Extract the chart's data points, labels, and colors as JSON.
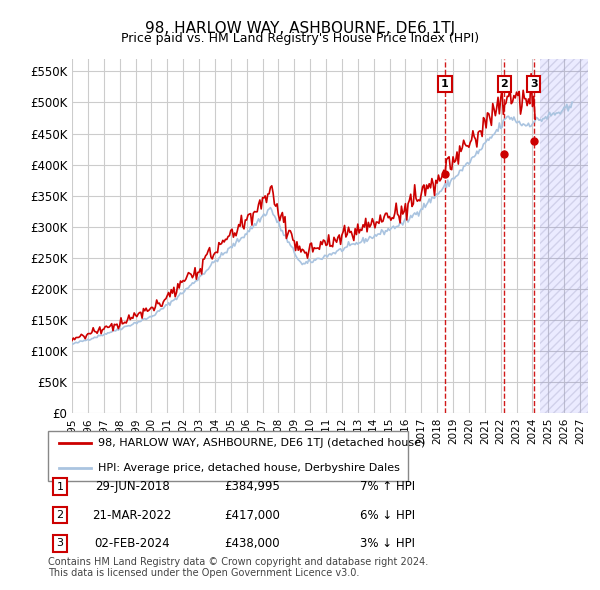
{
  "title": "98, HARLOW WAY, ASHBOURNE, DE6 1TJ",
  "subtitle": "Price paid vs. HM Land Registry's House Price Index (HPI)",
  "ylabel": "",
  "ylim": [
    0,
    570000
  ],
  "yticks": [
    0,
    50000,
    100000,
    150000,
    200000,
    250000,
    300000,
    350000,
    400000,
    450000,
    500000,
    550000
  ],
  "ytick_labels": [
    "£0",
    "£50K",
    "£100K",
    "£150K",
    "£200K",
    "£250K",
    "£300K",
    "£350K",
    "£400K",
    "£450K",
    "£500K",
    "£550K"
  ],
  "hpi_color": "#aac4e0",
  "price_color": "#cc0000",
  "transaction_color": "#cc0000",
  "dashed_line_color": "#cc0000",
  "background_color": "#ffffff",
  "grid_color": "#cccccc",
  "transactions": [
    {
      "date": 2018.49,
      "price": 384995,
      "label": "1"
    },
    {
      "date": 2022.22,
      "price": 417000,
      "label": "2"
    },
    {
      "date": 2024.09,
      "price": 438000,
      "label": "3"
    }
  ],
  "transaction_table": [
    {
      "num": "1",
      "date": "29-JUN-2018",
      "price": "£384,995",
      "hpi": "7% ↑ HPI"
    },
    {
      "num": "2",
      "date": "21-MAR-2022",
      "price": "£417,000",
      "hpi": "6% ↓ HPI"
    },
    {
      "num": "3",
      "date": "02-FEB-2024",
      "price": "£438,000",
      "hpi": "3% ↓ HPI"
    }
  ],
  "legend_line1": "98, HARLOW WAY, ASHBOURNE, DE6 1TJ (detached house)",
  "legend_line2": "HPI: Average price, detached house, Derbyshire Dales",
  "footnote": "Contains HM Land Registry data © Crown copyright and database right 2024.\nThis data is licensed under the Open Government Licence v3.0.",
  "xmin": 1995.0,
  "xmax": 2027.5
}
